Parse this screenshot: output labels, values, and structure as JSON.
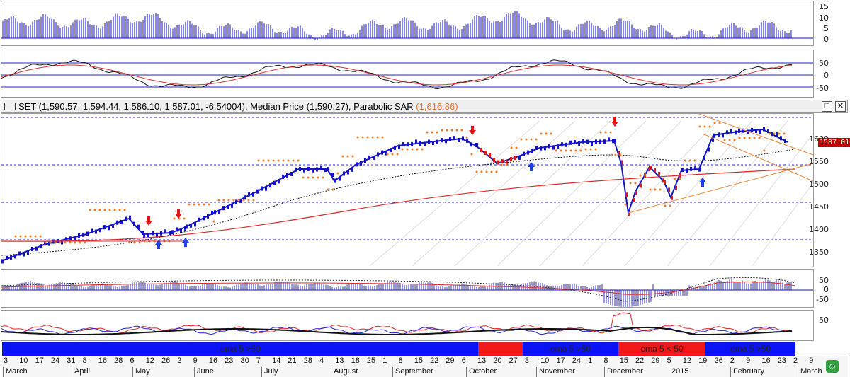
{
  "colors": {
    "blue": "#1010c8",
    "red": "#e02020",
    "orange": "#ef7b22",
    "band_blue": "#0b12f5",
    "band_red": "#f01818"
  },
  "panel1": {
    "ticks": [
      "15",
      "10",
      "5",
      "0"
    ]
  },
  "panel2": {
    "ticks": [
      "50",
      "0",
      "-50"
    ]
  },
  "main": {
    "header_symbol": "SET (1,590.57, 1,594.44, 1,586.10, 1,587.01, -6.54004), Median Price (1,590.27), Parabolic SAR ",
    "header_sar": "(1,616.86)",
    "last_price": "1587.010",
    "ticks": [
      "1600",
      "1550",
      "1500",
      "1450",
      "1400",
      "1350"
    ],
    "maximize_icon": "□",
    "close_icon": "✕"
  },
  "panel4": {
    "ticks": [
      "50",
      "0",
      "-50"
    ]
  },
  "panel5": {
    "ticks": [
      "50"
    ]
  },
  "bands": [
    {
      "label": "ema 5 >50",
      "color": "blue"
    },
    {
      "label": "",
      "color": "red"
    },
    {
      "label": "ema 5 >50",
      "color": "blue"
    },
    {
      "label": "ema 5 < 50",
      "color": "red"
    },
    {
      "label": "ema 5 >50",
      "color": "blue"
    }
  ],
  "dates": [
    "3",
    "10",
    "17",
    "24",
    "31",
    "8",
    "16",
    "28",
    "6",
    "12",
    "26",
    "2",
    "9",
    "16",
    "23",
    "30",
    "7",
    "14",
    "21",
    "28",
    "4",
    "13",
    "18",
    "25",
    "1",
    "8",
    "15",
    "22",
    "29",
    "6",
    "13",
    "20",
    "27",
    "3",
    "10",
    "17",
    "24",
    "1",
    "8",
    "15",
    "22",
    "29",
    "5",
    "12",
    "19",
    "26",
    "2",
    "9",
    "16",
    "23",
    "2",
    "9"
  ],
  "months": [
    "March",
    "April",
    "May",
    "June",
    "July",
    "August",
    "September",
    "October",
    "November",
    "December",
    "2015",
    "February",
    "March"
  ]
}
